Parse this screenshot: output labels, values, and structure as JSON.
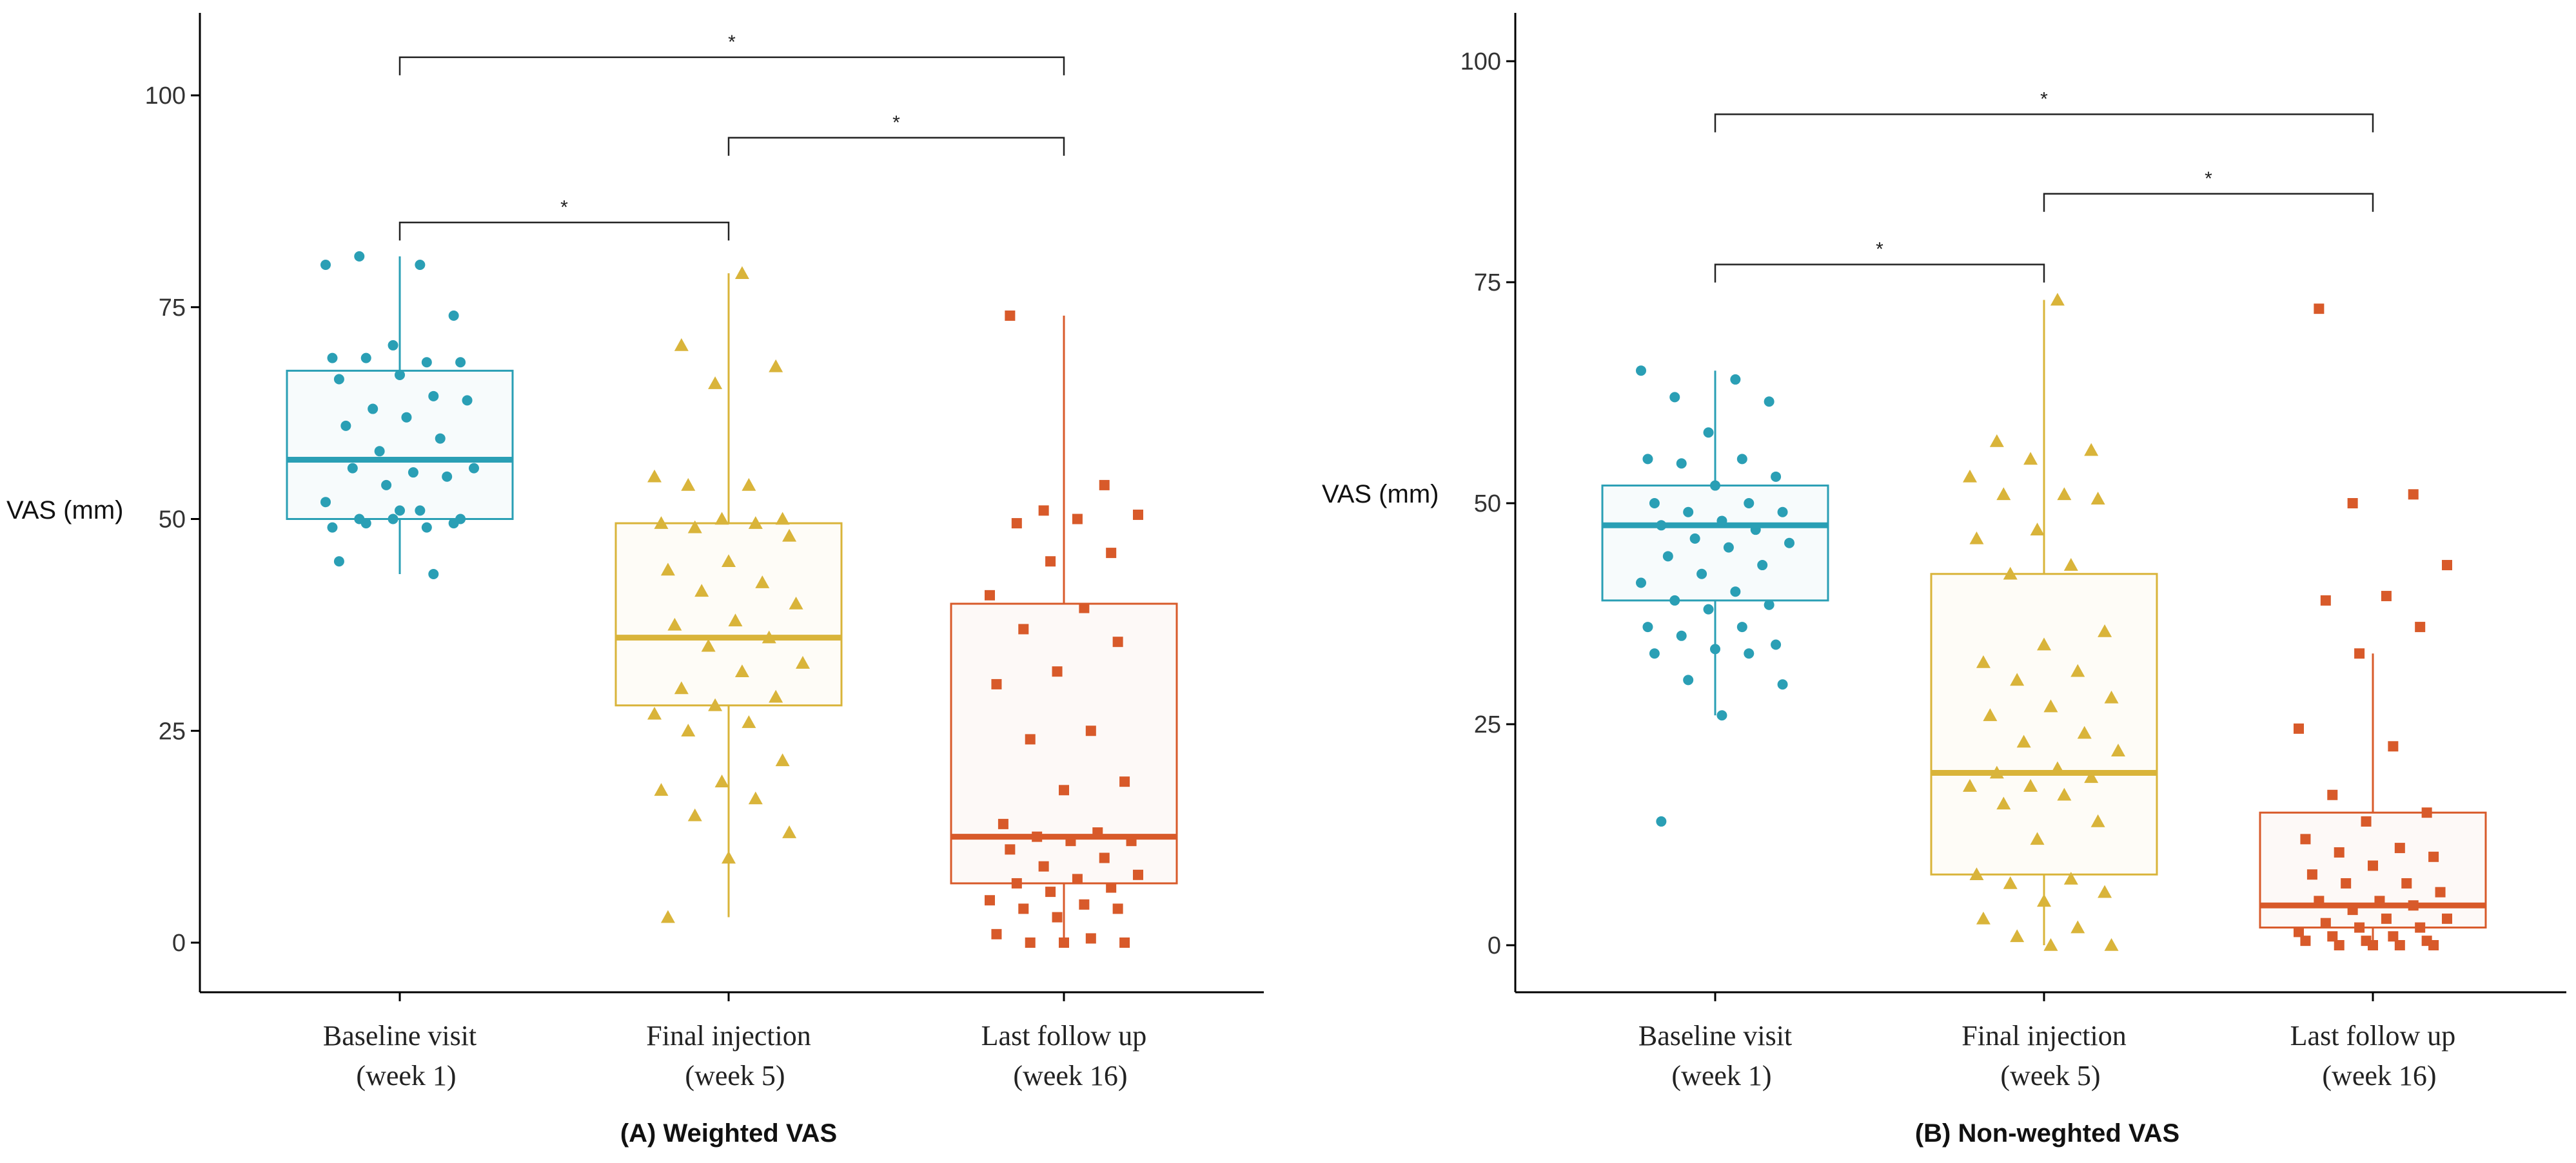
{
  "colors": {
    "baseline": "#2a9fb5",
    "final": "#d9b43a",
    "last": "#d85a2a",
    "axis": "#000000"
  },
  "chart_data": [
    {
      "type": "box",
      "caption": "(A) Weighted VAS",
      "ylabel": "VAS (mm)",
      "ylim": [
        -5,
        110
      ],
      "yticks": [
        0,
        25,
        50,
        75,
        100
      ],
      "categories": [
        "Baseline visit\n(week 1)",
        "Final injection\n(week 5)",
        "Last follow up\n(week 16)"
      ],
      "boxes": [
        {
          "min": 43.5,
          "q1": 50,
          "median": 57,
          "q3": 67.5,
          "max": 81
        },
        {
          "min": 3,
          "q1": 28,
          "median": 36,
          "q3": 49.5,
          "max": 79
        },
        {
          "min": 0,
          "q1": 7,
          "median": 12.5,
          "q3": 40,
          "max": 74
        }
      ],
      "points": [
        [
          80,
          80,
          81,
          74,
          70.5,
          69,
          68.5,
          69,
          68.5,
          67,
          66.5,
          64.5,
          63,
          64,
          62,
          61,
          59.5,
          58,
          56,
          55.5,
          56,
          55,
          54,
          52,
          51,
          50,
          49.5,
          50,
          49,
          49,
          49.5,
          50,
          51,
          45,
          43.5
        ],
        [
          79,
          70.5,
          68,
          66,
          55,
          54,
          54,
          50,
          50,
          49.5,
          49.5,
          49,
          48,
          45,
          44,
          42.5,
          41.5,
          40,
          38,
          37.5,
          36,
          35,
          33,
          32,
          30,
          29,
          28,
          27,
          26,
          25,
          21.5,
          19,
          18,
          17,
          15,
          13,
          10,
          3
        ],
        [
          74,
          54,
          51,
          50.5,
          50,
          49.5,
          46,
          45,
          41,
          39.5,
          37,
          35.5,
          32,
          30.5,
          25,
          24,
          19,
          18,
          14,
          13,
          12.5,
          12,
          12,
          11,
          10,
          9,
          8,
          7.5,
          7,
          6.5,
          6,
          5,
          4.5,
          4,
          4,
          3,
          1,
          0.5,
          0,
          0,
          0
        ]
      ],
      "significance": [
        {
          "from": 0,
          "to": 2,
          "y": 104.5,
          "label": "*"
        },
        {
          "from": 1,
          "to": 2,
          "y": 95,
          "label": "*"
        },
        {
          "from": 0,
          "to": 1,
          "y": 85,
          "label": "*"
        }
      ]
    },
    {
      "type": "box",
      "caption": "(B) Non-weghted VAS",
      "ylabel": "VAS (mm)",
      "ylim": [
        -5,
        105
      ],
      "yticks": [
        0,
        25,
        50,
        75,
        100
      ],
      "categories": [
        "Baseline visit\n(week 1)",
        "Final injection\n(week 5)",
        "Last follow up\n(week 16)"
      ],
      "boxes": [
        {
          "min": 26,
          "q1": 39,
          "median": 47.5,
          "q3": 52,
          "max": 65
        },
        {
          "min": 0,
          "q1": 8,
          "median": 19.5,
          "q3": 42,
          "max": 73
        },
        {
          "min": 0,
          "q1": 2,
          "median": 4.5,
          "q3": 15,
          "max": 33
        }
      ],
      "points": [
        [
          65,
          64,
          62,
          61.5,
          58,
          55,
          55,
          54.5,
          53,
          52,
          50,
          50,
          49,
          49,
          48,
          47.5,
          47,
          46,
          45.5,
          45,
          44,
          43,
          42,
          41,
          40,
          39,
          38.5,
          38,
          36,
          36,
          35,
          34,
          33.5,
          33,
          33,
          30,
          29.5,
          26,
          14
        ],
        [
          73,
          57,
          56,
          55,
          53,
          51,
          51,
          50.5,
          47,
          46,
          43,
          42,
          35.5,
          34,
          32,
          31,
          30,
          28,
          27,
          26,
          24,
          23,
          22,
          20,
          19.5,
          19,
          18,
          18,
          17,
          16,
          14,
          12,
          8,
          7.5,
          7,
          6,
          5,
          3,
          2,
          1,
          0,
          0
        ],
        [
          72,
          51,
          50,
          43,
          39.5,
          39,
          36,
          33,
          24.5,
          22.5,
          17,
          15,
          14,
          12,
          11,
          10.5,
          10,
          9,
          8,
          7,
          7,
          6,
          5,
          5,
          4.5,
          4,
          3,
          3,
          2.5,
          2,
          2,
          1.5,
          1,
          1,
          0.5,
          0.5,
          0.5,
          0,
          0,
          0,
          0
        ]
      ],
      "significance": [
        {
          "from": 0,
          "to": 2,
          "y": 94,
          "label": "*"
        },
        {
          "from": 1,
          "to": 2,
          "y": 85,
          "label": "*"
        },
        {
          "from": 0,
          "to": 1,
          "y": 77,
          "label": "*"
        }
      ]
    }
  ]
}
